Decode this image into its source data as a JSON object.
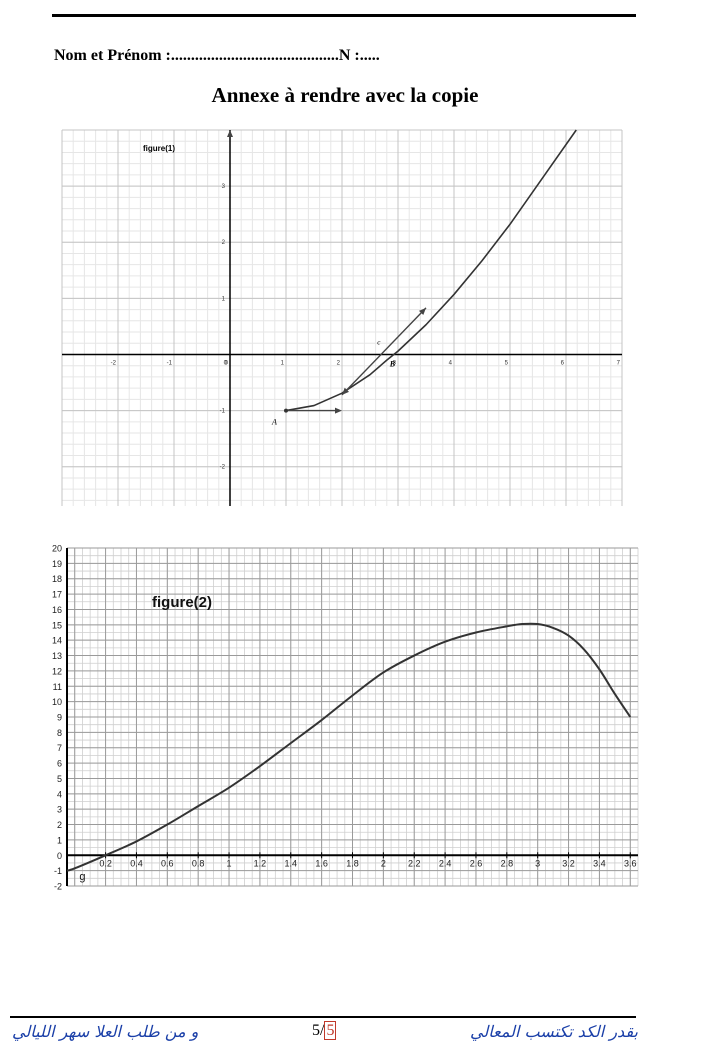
{
  "header": {
    "name_line": "Nom et Prénom :..........................................N :.....",
    "title": "Annexe à rendre avec la copie"
  },
  "chart_data": [
    {
      "type": "line",
      "title": "figure(1)",
      "xlim": [
        -3,
        7
      ],
      "ylim": [
        -2.7,
        4
      ],
      "x_ticks": [
        -2,
        -1,
        0,
        1,
        2,
        3,
        4,
        5,
        6,
        7
      ],
      "y_ticks": [
        -2,
        -1,
        1,
        2,
        3
      ],
      "grid": true,
      "curve": {
        "x": [
          1,
          1.5,
          2,
          2.5,
          2.8,
          3,
          3.5,
          4,
          4.5,
          5,
          5.5
        ],
        "y": [
          -1,
          -0.91,
          -0.69,
          -0.36,
          -0.1,
          0.06,
          0.53,
          1.07,
          1.67,
          2.32,
          3.03
        ]
      },
      "points": [
        {
          "label": "A",
          "x": 1,
          "y": -1
        },
        {
          "label": "B",
          "x": 2.8,
          "y": 0
        }
      ],
      "annotations": [
        {
          "label": "c",
          "x": 2.7,
          "y": 0.12
        }
      ],
      "tangent_A": {
        "from": [
          1,
          -1
        ],
        "to": [
          2,
          -1
        ]
      },
      "tangent_B": {
        "from": [
          2,
          -0.72
        ],
        "to": [
          3.5,
          0.83
        ]
      }
    },
    {
      "type": "line",
      "title": "figure(2)",
      "xlim": [
        -0.05,
        3.65
      ],
      "ylim": [
        -2,
        20
      ],
      "x_ticks": [
        "0.2",
        "0.4",
        "0.6",
        "0.8",
        "1",
        "1.2",
        "1.4",
        "1.6",
        "1.8",
        "2",
        "2.2",
        "2.4",
        "2.6",
        "2.8",
        "3",
        "3.2",
        "3.4",
        "3.6"
      ],
      "y_ticks": [
        "-2",
        "-1",
        "0",
        "1",
        "2",
        "3",
        "4",
        "5",
        "6",
        "7",
        "8",
        "9",
        "10",
        "11",
        "12",
        "13",
        "14",
        "15",
        "16",
        "17",
        "18",
        "19",
        "20"
      ],
      "grid": true,
      "curve_label": "g",
      "x": [
        -0.05,
        0,
        0.2,
        0.4,
        0.6,
        0.8,
        1,
        1.2,
        1.4,
        1.6,
        1.8,
        2,
        2.2,
        2.4,
        2.6,
        2.8,
        2.9,
        3,
        3.1,
        3.2,
        3.3,
        3.4,
        3.5,
        3.6
      ],
      "y": [
        -1,
        -0.85,
        0,
        0.9,
        2.0,
        3.2,
        4.4,
        5.8,
        7.3,
        8.8,
        10.4,
        11.9,
        13.0,
        13.9,
        14.5,
        14.9,
        15.05,
        15.05,
        14.8,
        14.3,
        13.4,
        12.1,
        10.5,
        9.0
      ]
    }
  ],
  "footer": {
    "left_text": "و من طلب العلا سهر الليالي",
    "page_current": "5/",
    "page_total": "5",
    "right_text": "بقدر الكد تكتسب المعالي"
  }
}
